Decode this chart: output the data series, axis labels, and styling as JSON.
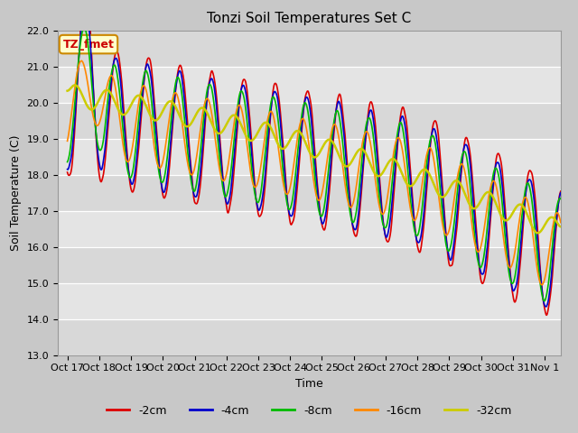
{
  "title": "Tonzi Soil Temperatures Set C",
  "xlabel": "Time",
  "ylabel": "Soil Temperature (C)",
  "ylim": [
    13.0,
    22.0
  ],
  "yticks": [
    13.0,
    14.0,
    15.0,
    16.0,
    17.0,
    18.0,
    19.0,
    20.0,
    21.0,
    22.0
  ],
  "xtick_labels": [
    "Oct 17",
    "Oct 18",
    "Oct 19",
    "Oct 20",
    "Oct 21",
    "Oct 22",
    "Oct 23",
    "Oct 24",
    "Oct 25",
    "Oct 26",
    "Oct 27",
    "Oct 28",
    "Oct 29",
    "Oct 30",
    "Oct 31",
    "Nov 1"
  ],
  "legend_labels": [
    "-2cm",
    "-4cm",
    "-8cm",
    "-16cm",
    "-32cm"
  ],
  "legend_colors": [
    "#dd0000",
    "#0000cc",
    "#00bb00",
    "#ff8800",
    "#cccc00"
  ],
  "line_widths": [
    1.2,
    1.2,
    1.2,
    1.2,
    1.8
  ],
  "annotation_text": "TZ_fmet",
  "annotation_bg": "#ffffcc",
  "annotation_border": "#cc8800",
  "fig_bg": "#c8c8c8",
  "plot_bg_dark": "#d0d0d0",
  "plot_bg_light": "#e0e0e0",
  "title_fontsize": 11,
  "label_fontsize": 9,
  "tick_fontsize": 8
}
